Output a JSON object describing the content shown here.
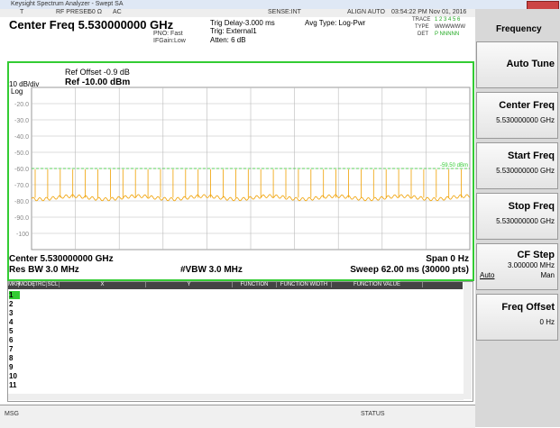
{
  "window": {
    "title": "Keysight Spectrum Analyzer - Swept SA"
  },
  "status_row": {
    "trace_mode": "T",
    "rf": "RF PRESEL",
    "impedance": "50 Ω",
    "coupling": "AC",
    "sense": "SENSE:INT",
    "align": "ALIGN AUTO",
    "datetime": "03:54:22 PM Nov 01, 2016"
  },
  "header": {
    "center_freq": "Center Freq 5.530000000 GHz",
    "pno": "PNO: Fast",
    "ifgain": "IFGain:Low",
    "trig_delay": "Trig Delay-3.000 ms",
    "trig": "Trig: External1",
    "atten": "Atten: 6 dB",
    "avg_type": "Avg Type: Log-Pwr",
    "trace_label": "TRACE",
    "trace_nums": "1 2 3 4 5 6",
    "type_label": "TYPE",
    "type_vals": "WWWWWW",
    "det_label": "DET",
    "det_vals": "P NNNNN"
  },
  "graph": {
    "ref_offset": "Ref Offset -0.9 dB",
    "ref": "Ref -10.00 dBm",
    "scale": "10 dB/div",
    "log": "Log",
    "y_labels": [
      "-20.0",
      "-30.0",
      "-40.0",
      "-50.0",
      "-60.0",
      "-70.0",
      "-80.0",
      "-90.0",
      "-100"
    ],
    "display_line": "-59.50 dBm",
    "center": "Center 5.530000000 GHz",
    "span": "Span 0 Hz",
    "res_bw": "Res BW 3.0 MHz",
    "vbw": "#VBW 3.0 MHz",
    "sweep": "Sweep 62.00 ms (30000 pts)"
  },
  "table": {
    "headers": [
      "MKR",
      "MODE",
      "TRC",
      "SCL",
      "X",
      "Y",
      "FUNCTION",
      "FUNCTION WIDTH",
      "FUNCTION VALUE"
    ],
    "rows": [
      "1",
      "2",
      "3",
      "4",
      "5",
      "6",
      "7",
      "8",
      "9",
      "10",
      "11"
    ]
  },
  "footer": {
    "msg": "MSG",
    "status": "STATUS"
  },
  "softkeys": {
    "menu": "Frequency",
    "auto_tune": "Auto Tune",
    "center_freq": "Center Freq",
    "center_val": "5.530000000 GHz",
    "start_freq": "Start Freq",
    "start_val": "5.530000000 GHz",
    "stop_freq": "Stop Freq",
    "stop_val": "5.530000000 GHz",
    "cf_step": "CF Step",
    "cf_val": "3.000000 MHz",
    "auto": "Auto",
    "man": "Man",
    "freq_offset": "Freq Offset",
    "offset_val": "0 Hz"
  }
}
